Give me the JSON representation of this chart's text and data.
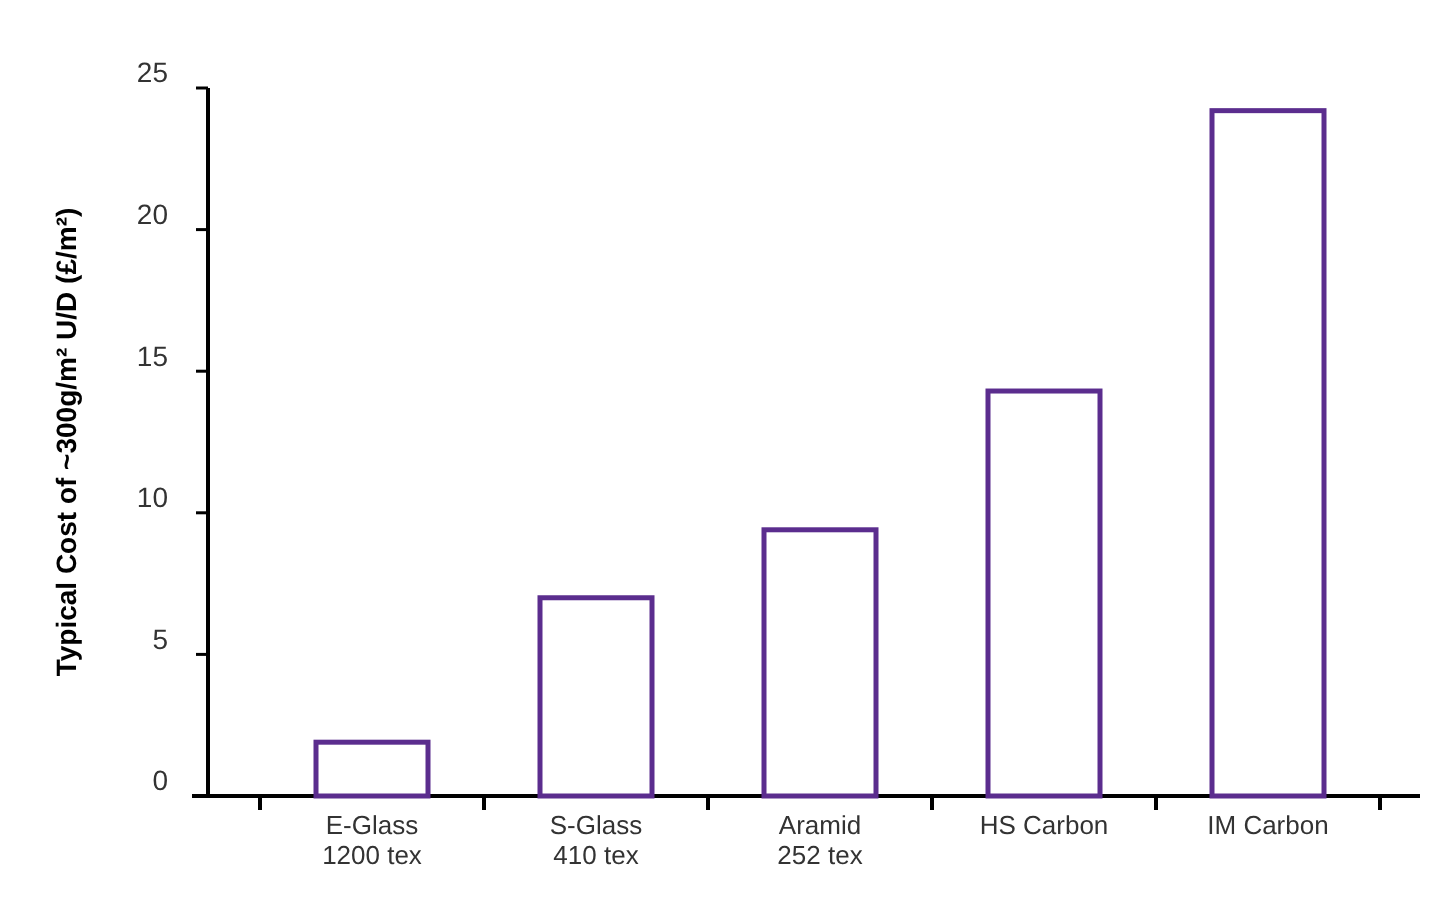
{
  "chart_data": {
    "type": "bar",
    "ylabel": "Typical Cost of ~300g/m² U/D (£/m²)",
    "categories": [
      "E-Glass\n1200 tex",
      "S-Glass\n410 tex",
      "Aramid\n252 tex",
      "HS Carbon",
      "IM Carbon"
    ],
    "values": [
      1.9,
      7.0,
      9.4,
      14.3,
      24.2
    ],
    "color": "#5b2d8e",
    "ylim": [
      0,
      25
    ],
    "yticks": [
      0,
      5,
      10,
      15,
      20,
      25
    ],
    "grid": false
  }
}
